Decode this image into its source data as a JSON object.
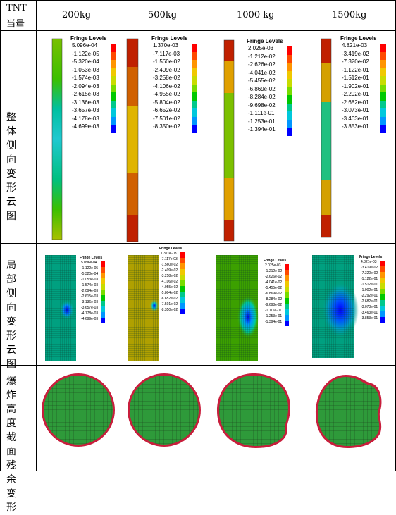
{
  "header": {
    "tnt_label_line1": "TNT",
    "tnt_label_line2": "当量",
    "cases": [
      "200kg",
      "500kg",
      "1000 kg",
      "1500kg"
    ]
  },
  "rows": {
    "overall": "整体侧向变形云图",
    "local": "局部侧向变形云图",
    "section": "爆炸高度截面残余变形"
  },
  "fringe_title": "Fringe Levels",
  "legend_colors": [
    "#ff0000",
    "#ff4a00",
    "#ff9400",
    "#f0c800",
    "#c8dc00",
    "#78dc00",
    "#00c800",
    "#00c88c",
    "#00c8dc",
    "#0096ff",
    "#0000ff"
  ],
  "legends": [
    [
      "5.096e-04",
      "-1.122e-05",
      "-5.320e-04",
      "-1.053e-03",
      "-1.574e-03",
      "-2.094e-03",
      "-2.615e-03",
      "-3.136e-03",
      "-3.657e-03",
      "-4.178e-03",
      "-4.699e-03"
    ],
    [
      "1.370e-03",
      "-7.117e-03",
      "-1.560e-02",
      "-2.409e-02",
      "-3.258e-02",
      "-4.106e-02",
      "-4.955e-02",
      "-5.804e-02",
      "-6.652e-02",
      "-7.501e-02",
      "-8.350e-02"
    ],
    [
      "2.025e-03",
      "-1.212e-02",
      "-2.626e-02",
      "-4.041e-02",
      "-5.455e-02",
      "-6.869e-02",
      "-8.284e-02",
      "-9.698e-02",
      "-1.111e-01",
      "-1.253e-01",
      "-1.394e-01"
    ],
    [
      "4.821e-03",
      "-3.419e-02",
      "-7.320e-02",
      "-1.122e-01",
      "-1.512e-01",
      "-1.902e-01",
      "-2.292e-01",
      "-2.682e-01",
      "-3.073e-01",
      "-3.463e-01",
      "-3.853e-01"
    ]
  ]
}
